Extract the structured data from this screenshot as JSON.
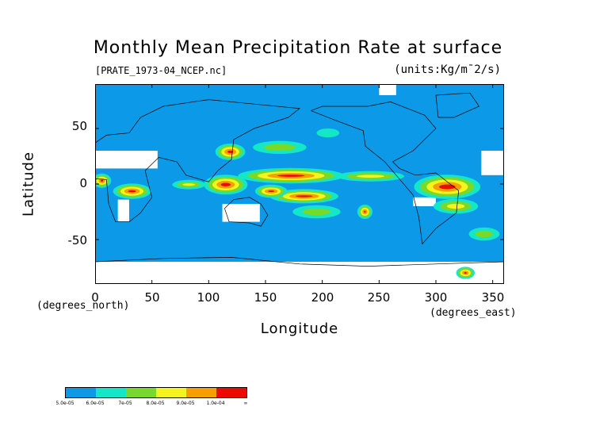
{
  "title": "Monthly Mean Precipitation Rate at surface",
  "file_label": "[PRATE_1973-04_NCEP.nc]",
  "units_label": "(units:Kg/m¯2/s)",
  "axes": {
    "y_ticks": [
      "50",
      "0",
      "-50"
    ],
    "x_ticks": [
      "0",
      "50",
      "100",
      "150",
      "200",
      "250",
      "300",
      "350"
    ],
    "y_label": "Latitude",
    "y_unit": "(degrees_north)",
    "x_label": "Longitude",
    "x_unit": "(degrees_east)"
  },
  "colorbar": {
    "labels": [
      "5.0e-05",
      "6.0e-05",
      "7e-05",
      "8.0e-05",
      "9.0e-05",
      "1.0e-04",
      "∞"
    ],
    "colors": [
      "#0c9ae8",
      "#14e6c8",
      "#7ad82a",
      "#f5f51e",
      "#f5a000",
      "#ea0a00"
    ]
  },
  "chart_data": {
    "type": "heatmap",
    "title": "Monthly Mean Precipitation Rate at surface",
    "xlabel": "Longitude",
    "ylabel": "Latitude",
    "xlim": [
      0,
      360
    ],
    "ylim": [
      -90,
      90
    ],
    "x_ticks": [
      0,
      50,
      100,
      150,
      200,
      250,
      300,
      350
    ],
    "y_ticks": [
      50,
      0,
      -50
    ],
    "background_color": "#0c9ae8",
    "missing_color": "#ffffff",
    "regions": [
      {
        "level": 5,
        "lon": [
          130,
          215
        ],
        "lat": [
          4,
          11
        ]
      },
      {
        "level": 5,
        "lon": [
          158,
          210
        ],
        "lat": [
          -14,
          -8
        ]
      },
      {
        "level": 5,
        "lon": [
          145,
          165
        ],
        "lat": [
          -9,
          -4
        ]
      },
      {
        "level": 5,
        "lon": [
          285,
          335
        ],
        "lat": [
          -10,
          5
        ]
      },
      {
        "level": 5,
        "lon": [
          20,
          45
        ],
        "lat": [
          -10,
          -3
        ]
      },
      {
        "level": 5,
        "lon": [
          100,
          130
        ],
        "lat": [
          -6,
          5
        ]
      },
      {
        "level": 5,
        "lon": [
          110,
          128
        ],
        "lat": [
          25,
          33
        ]
      },
      {
        "level": 5,
        "lon": [
          2,
          10
        ],
        "lat": [
          0,
          6
        ]
      },
      {
        "level": 5,
        "lon": [
          235,
          240
        ],
        "lat": [
          -28,
          -22
        ]
      },
      {
        "level": 5,
        "lon": [
          322,
          330
        ],
        "lat": [
          -82,
          -78
        ]
      },
      {
        "level": 3,
        "lon": [
          215,
          270
        ],
        "lat": [
          4,
          10
        ]
      },
      {
        "level": 3,
        "lon": [
          70,
          95
        ],
        "lat": [
          -3,
          2
        ]
      },
      {
        "level": 3,
        "lon": [
          300,
          335
        ],
        "lat": [
          -25,
          -15
        ]
      },
      {
        "level": 2,
        "lon": [
          140,
          185
        ],
        "lat": [
          28,
          38
        ]
      },
      {
        "level": 2,
        "lon": [
          175,
          215
        ],
        "lat": [
          -30,
          -20
        ]
      },
      {
        "level": 2,
        "lon": [
          330,
          355
        ],
        "lat": [
          -50,
          -40
        ]
      },
      {
        "level": 1,
        "lon": [
          195,
          215
        ],
        "lat": [
          42,
          50
        ]
      }
    ],
    "missing_regions": [
      {
        "lon": [
          0,
          55
        ],
        "lat": [
          14,
          30
        ]
      },
      {
        "lon": [
          20,
          30
        ],
        "lat": [
          -34,
          -14
        ]
      },
      {
        "lon": [
          112,
          145
        ],
        "lat": [
          -34,
          -18
        ]
      },
      {
        "lon": [
          340,
          360
        ],
        "lat": [
          8,
          30
        ]
      },
      {
        "lon": [
          250,
          265
        ],
        "lat": [
          80,
          90
        ]
      },
      {
        "lon": [
          0,
          360
        ],
        "lat": [
          -90,
          -70
        ]
      },
      {
        "lon": [
          280,
          300
        ],
        "lat": [
          -20,
          -12
        ]
      }
    ]
  }
}
